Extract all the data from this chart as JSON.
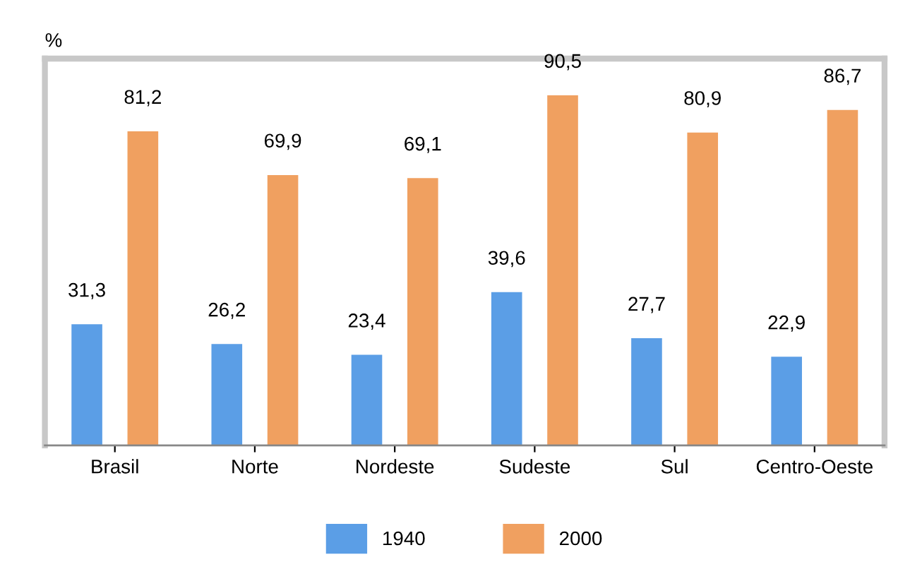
{
  "chart_data": {
    "type": "bar",
    "ylabel": "%",
    "categories": [
      "Brasil",
      "Norte",
      "Nordeste",
      "Sudeste",
      "Sul",
      "Centro-Oeste"
    ],
    "series": [
      {
        "name": "1940",
        "color": "#5b9ee6",
        "values": [
          31.3,
          26.2,
          23.4,
          39.6,
          27.7,
          22.9
        ],
        "value_labels": [
          "31,3",
          "26,2",
          "23,4",
          "39,6",
          "27,7",
          "22,9"
        ]
      },
      {
        "name": "2000",
        "color": "#f0a060",
        "values": [
          81.2,
          69.9,
          69.1,
          90.5,
          80.9,
          86.7
        ],
        "value_labels": [
          "81,2",
          "69,9",
          "69,1",
          "90,5",
          "80,9",
          "86,7"
        ]
      }
    ],
    "ylim": [
      0,
      100
    ],
    "tick_labels": "x",
    "grid": false,
    "legend": "bottom"
  }
}
